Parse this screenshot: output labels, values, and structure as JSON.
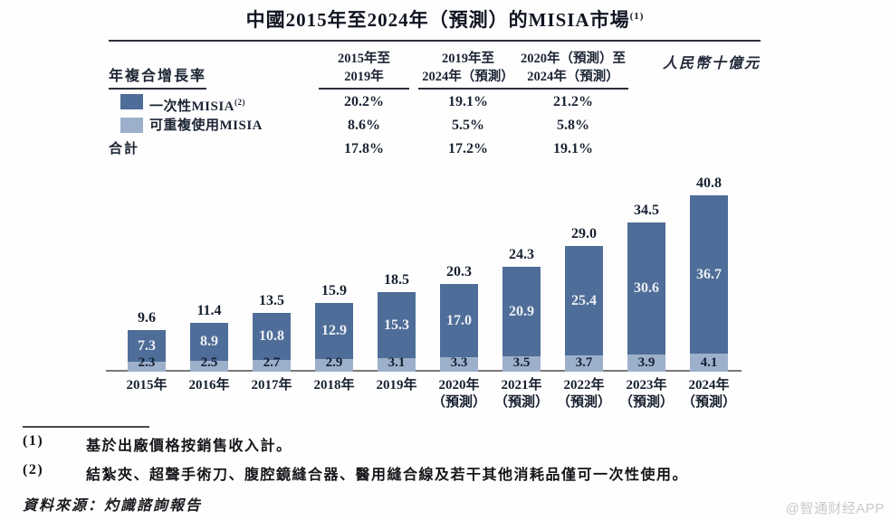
{
  "title": {
    "text": "中國2015年至2024年（預測）的MISIA市場",
    "sup": "(1)"
  },
  "table": {
    "row_header": "年複合增長率",
    "unit_label": "人民幣十億元",
    "columns": [
      {
        "line1": "2015年至",
        "line2": "2019年"
      },
      {
        "line1": "2019年至",
        "line2": "2024年（預測）"
      },
      {
        "line1": "2020年（預測）至",
        "line2": "2024年（預測）"
      }
    ],
    "rows": [
      {
        "label": "一次性MISIA",
        "sup": "(2)",
        "values": [
          "20.2%",
          "19.1%",
          "21.2%"
        ]
      },
      {
        "label": "可重複使用MISIA",
        "sup": "",
        "values": [
          "8.6%",
          "5.5%",
          "5.8%"
        ]
      },
      {
        "label": "合計",
        "sup": "",
        "values": [
          "17.8%",
          "17.2%",
          "19.1%"
        ]
      }
    ]
  },
  "chart_data": {
    "type": "bar",
    "stacked": true,
    "title": "中國2015年至2024年（預測）的MISIA市場",
    "ylabel": "人民幣十億元",
    "ylim": [
      0,
      42
    ],
    "grid": false,
    "legend_position": "top-left-table",
    "categories": [
      {
        "label": "2015年",
        "sub": ""
      },
      {
        "label": "2016年",
        "sub": ""
      },
      {
        "label": "2017年",
        "sub": ""
      },
      {
        "label": "2018年",
        "sub": ""
      },
      {
        "label": "2019年",
        "sub": ""
      },
      {
        "label": "2020年",
        "sub": "（預測）"
      },
      {
        "label": "2021年",
        "sub": "（預測）"
      },
      {
        "label": "2022年",
        "sub": "（預測）"
      },
      {
        "label": "2023年",
        "sub": "（預測）"
      },
      {
        "label": "2024年",
        "sub": "（預測）"
      }
    ],
    "series": [
      {
        "name": "一次性MISIA",
        "color": "#4e6d98",
        "values": [
          7.3,
          8.9,
          10.8,
          12.9,
          15.3,
          17.0,
          20.9,
          25.4,
          30.6,
          36.7
        ]
      },
      {
        "name": "可重複使用MISIA",
        "color": "#9db0cb",
        "values": [
          2.3,
          2.5,
          2.7,
          2.9,
          3.1,
          3.3,
          3.5,
          3.7,
          3.9,
          4.1
        ]
      }
    ],
    "totals": [
      9.6,
      11.4,
      13.5,
      15.9,
      18.5,
      20.3,
      24.3,
      29.0,
      34.5,
      40.8
    ]
  },
  "footnotes": [
    {
      "marker": "(1)",
      "text": "基於出廠價格按銷售收入計。"
    },
    {
      "marker": "(2)",
      "text": "結紮夾、超聲手術刀、腹腔鏡縫合器、醫用縫合線及若干其他消耗品僅可一次性使用。"
    }
  ],
  "source": "資料來源：灼識諮詢報告",
  "watermark": "@智通财经APP"
}
